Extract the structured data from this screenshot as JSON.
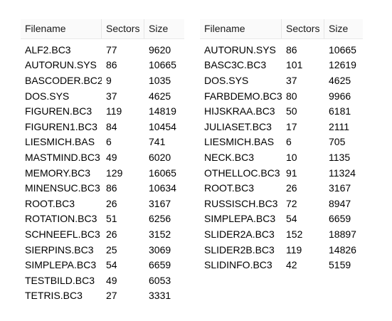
{
  "headers": {
    "filename": "Filename",
    "sectors": "Sectors",
    "size": "Size"
  },
  "left_table": {
    "rows": [
      {
        "filename": "ALF2.BC3",
        "sectors": "77",
        "size": "9620"
      },
      {
        "filename": "AUTORUN.SYS",
        "sectors": "86",
        "size": "10665"
      },
      {
        "filename": "BASCODER.BC2",
        "sectors": "9",
        "size": "1035"
      },
      {
        "filename": "DOS.SYS",
        "sectors": "37",
        "size": "4625"
      },
      {
        "filename": "FIGUREN.BC3",
        "sectors": "119",
        "size": "14819"
      },
      {
        "filename": "FIGUREN1.BC3",
        "sectors": "84",
        "size": "10454"
      },
      {
        "filename": "LIESMICH.BAS",
        "sectors": "6",
        "size": "741"
      },
      {
        "filename": "MASTMIND.BC3",
        "sectors": "49",
        "size": "6020"
      },
      {
        "filename": "MEMORY.BC3",
        "sectors": "129",
        "size": "16065"
      },
      {
        "filename": "MINENSUC.BC3",
        "sectors": "86",
        "size": "10634"
      },
      {
        "filename": "ROOT.BC3",
        "sectors": "26",
        "size": "3167"
      },
      {
        "filename": "ROTATION.BC3",
        "sectors": "51",
        "size": "6256"
      },
      {
        "filename": "SCHNEEFL.BC3",
        "sectors": "26",
        "size": "3152"
      },
      {
        "filename": "SIERPINS.BC3",
        "sectors": "25",
        "size": "3069"
      },
      {
        "filename": "SIMPLEPA.BC3",
        "sectors": "54",
        "size": "6659"
      },
      {
        "filename": "TESTBILD.BC3",
        "sectors": "49",
        "size": "6053"
      },
      {
        "filename": "TETRIS.BC3",
        "sectors": "27",
        "size": "3331"
      }
    ]
  },
  "right_table": {
    "rows": [
      {
        "filename": "AUTORUN.SYS",
        "sectors": "86",
        "size": "10665"
      },
      {
        "filename": "BASC3C.BC3",
        "sectors": "101",
        "size": "12619"
      },
      {
        "filename": "DOS.SYS",
        "sectors": "37",
        "size": "4625"
      },
      {
        "filename": "FARBDEMO.BC3",
        "sectors": "80",
        "size": "9966"
      },
      {
        "filename": "HIJSKRAA.BC3",
        "sectors": "50",
        "size": "6181"
      },
      {
        "filename": "JULIASET.BC3",
        "sectors": "17",
        "size": "2111"
      },
      {
        "filename": "LIESMICH.BAS",
        "sectors": "6",
        "size": "705"
      },
      {
        "filename": "NECK.BC3",
        "sectors": "10",
        "size": "1135"
      },
      {
        "filename": "OTHELLOC.BC3",
        "sectors": "91",
        "size": "11324"
      },
      {
        "filename": "ROOT.BC3",
        "sectors": "26",
        "size": "3167"
      },
      {
        "filename": "RUSSISCH.BC3",
        "sectors": "72",
        "size": "8947"
      },
      {
        "filename": "SIMPLEPA.BC3",
        "sectors": "54",
        "size": "6659"
      },
      {
        "filename": "SLIDER2A.BC3",
        "sectors": "152",
        "size": "18897"
      },
      {
        "filename": "SLIDER2B.BC3",
        "sectors": "119",
        "size": "14826"
      },
      {
        "filename": "SLIDINFO.BC3",
        "sectors": "42",
        "size": "5159"
      }
    ]
  }
}
